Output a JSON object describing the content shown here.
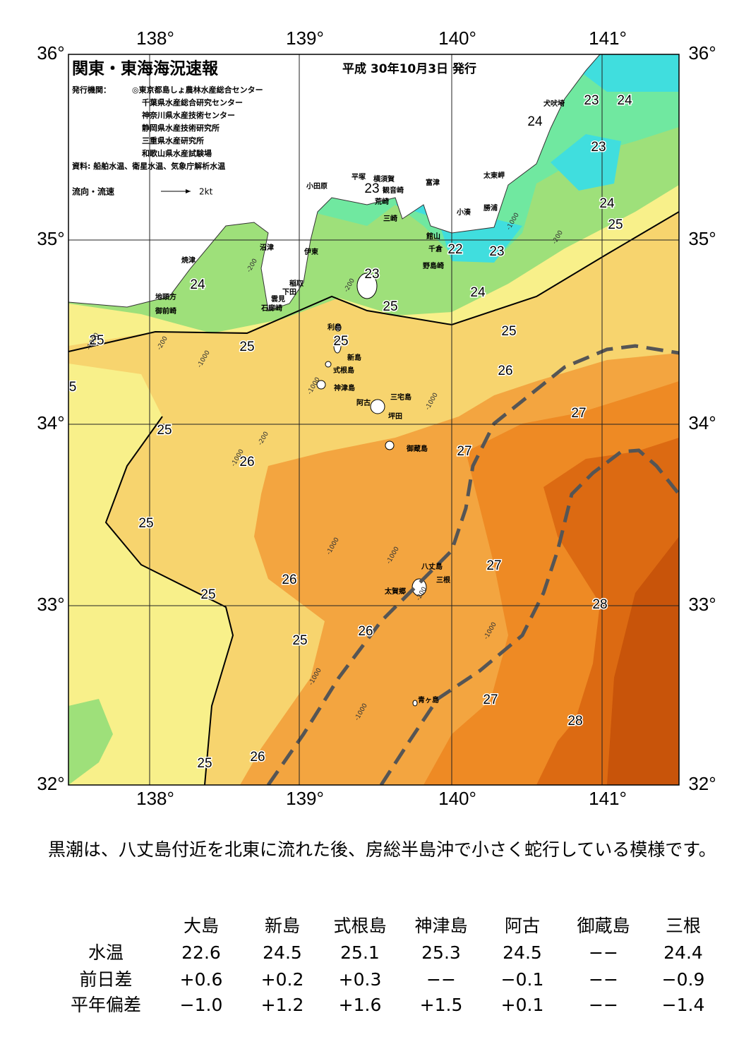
{
  "header": {
    "title": "関東・東海海況速報",
    "date": "平成 30年10月3日 発行"
  },
  "publishers": {
    "label": "発行機関：",
    "items": [
      "◎東京都島しょ農林水産総合センター",
      "千葉県水産総合研究センター",
      "神奈川県水産技術センター",
      "静岡県水産技術研究所",
      "三重県水産研究所",
      "和歌山県水産試験場"
    ]
  },
  "source": "資料: 船舶水温、衛星水温、気象庁解析水温",
  "legend": {
    "label": "流向・流速",
    "speed": "2kt"
  },
  "axes": {
    "lon": [
      "138°",
      "139°",
      "140°",
      "141°"
    ],
    "lat": [
      "36°",
      "35°",
      "34°",
      "33°",
      "32°"
    ]
  },
  "places": [
    "犬吠埼",
    "太東岬",
    "勝浦",
    "小湊",
    "館山",
    "千倉",
    "野島崎",
    "富津",
    "観音崎",
    "横須賀",
    "荒崎",
    "平塚",
    "小田原",
    "三崎",
    "沼津",
    "伊東",
    "稲取",
    "下田",
    "雲見",
    "石廊崎",
    "焼津",
    "地頭方",
    "御前崎",
    "利島",
    "新島",
    "式根島",
    "神津島",
    "三宅島",
    "阿古",
    "坪田",
    "御蔵島",
    "八丈島",
    "三根",
    "太賀郷",
    "青ヶ島"
  ],
  "temps": [
    23,
    24,
    24,
    23,
    23,
    24,
    25,
    22,
    23,
    23,
    24,
    25,
    25,
    24,
    25,
    25,
    25,
    26,
    5,
    27,
    25,
    27,
    26,
    25,
    27,
    26,
    25,
    28,
    25,
    26,
    27,
    28,
    25,
    26
  ],
  "depths": [
    "-1000",
    "-200",
    "-200",
    "-1000",
    "-200",
    "-1000",
    "-200",
    "-1000",
    "-1000",
    "-1000",
    "-1000",
    "-200",
    "-1000",
    "-1000",
    "-1000",
    "-1000",
    "-200"
  ],
  "comment": "黒潮は、八丈島付近を北東に流れた後、房総半島沖で小さく蛇行している模様です。",
  "table": {
    "columns": [
      "大島",
      "新島",
      "式根島",
      "神津島",
      "阿古",
      "御蔵島",
      "三根"
    ],
    "rows": [
      {
        "label": "水温",
        "values": [
          "22.6",
          "24.5",
          "25.1",
          "25.3",
          "24.5",
          "−−",
          "24.4"
        ]
      },
      {
        "label": "前日差",
        "values": [
          "+0.6",
          "+0.2",
          "+0.3",
          "−−",
          "−0.1",
          "−−",
          "−0.9"
        ]
      },
      {
        "label": "平年偏差",
        "values": [
          "−1.0",
          "+1.2",
          "+1.6",
          "+1.5",
          "+0.1",
          "−−",
          "−1.4"
        ]
      }
    ]
  }
}
